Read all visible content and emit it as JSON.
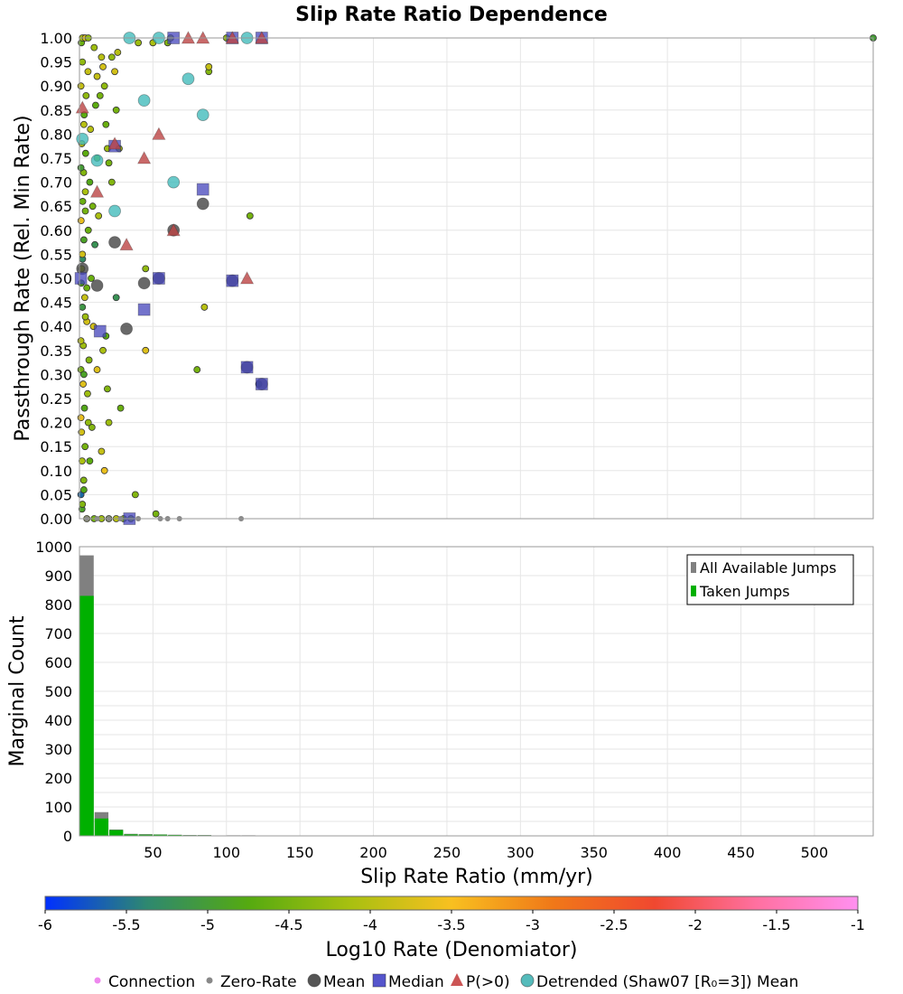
{
  "chart_data": [
    {
      "type": "scatter",
      "title": "Slip Rate Ratio Dependence",
      "xlabel": "",
      "ylabel": "Passthrough Rate (Rel. Min Rate)",
      "xlim": [
        0,
        540
      ],
      "ylim": [
        0,
        1
      ],
      "x_ticks": [],
      "y_ticks": [
        "0.00",
        "0.05",
        "0.10",
        "0.15",
        "0.20",
        "0.25",
        "0.30",
        "0.35",
        "0.40",
        "0.45",
        "0.50",
        "0.55",
        "0.60",
        "0.65",
        "0.70",
        "0.75",
        "0.80",
        "0.85",
        "0.90",
        "0.95",
        "1.00"
      ],
      "grid": true,
      "series": [
        {
          "name": "Connection",
          "marker": "circle-small",
          "color_scale": "log10_rate",
          "points": [
            [
              1.2,
              0.49,
              -4.8
            ],
            [
              1.5,
              0.52,
              -4.2
            ],
            [
              2,
              0.44,
              -5.1
            ],
            [
              1,
              0.31,
              -4.5
            ],
            [
              2.5,
              0.28,
              -3.7
            ],
            [
              1,
              0.05,
              -5.6
            ],
            [
              1.8,
              0.12,
              -4.1
            ],
            [
              2.2,
              0.66,
              -4.6
            ],
            [
              1,
              0.9,
              -3.9
            ],
            [
              2.8,
              0.72,
              -4.4
            ],
            [
              3,
              0.58,
              -4.9
            ],
            [
              1.4,
              0.18,
              -3.8
            ],
            [
              2,
              0.95,
              -4.3
            ],
            [
              3.2,
              0.84,
              -4.7
            ],
            [
              1.1,
              0.62,
              -3.6
            ],
            [
              2.6,
              0.36,
              -4.2
            ],
            [
              3.4,
              0.23,
              -4.8
            ],
            [
              1.6,
              0.78,
              -4.0
            ],
            [
              2.9,
              0.08,
              -4.4
            ],
            [
              1.3,
              0.99,
              -4.6
            ],
            [
              3.6,
              0.46,
              -3.9
            ],
            [
              2.1,
              0.54,
              -5.3
            ],
            [
              4,
              0.68,
              -4.1
            ],
            [
              3.8,
              0.15,
              -4.5
            ],
            [
              1.7,
              0.02,
              -4.9
            ],
            [
              4.5,
              0.88,
              -4.3
            ],
            [
              5,
              0.41,
              -3.8
            ],
            [
              4.2,
              0.76,
              -4.7
            ],
            [
              5.5,
              0.26,
              -4.2
            ],
            [
              6,
              0.6,
              -4.6
            ],
            [
              5.8,
              0.93,
              -3.9
            ],
            [
              6.5,
              0.33,
              -4.4
            ],
            [
              7,
              0.7,
              -4.8
            ],
            [
              3,
              1.0,
              -4.5
            ],
            [
              2,
              1.0,
              -4.1
            ],
            [
              4,
              1.0,
              -3.7
            ],
            [
              6,
              1.0,
              -4.3
            ],
            [
              8,
              0.5,
              -4.6
            ],
            [
              7.5,
              0.81,
              -4.0
            ],
            [
              9,
              0.65,
              -4.5
            ],
            [
              10,
              0.98,
              -4.2
            ],
            [
              11,
              0.86,
              -4.7
            ],
            [
              12,
              0.92,
              -3.9
            ],
            [
              8.5,
              0.19,
              -4.4
            ],
            [
              9.5,
              0.4,
              -3.8
            ],
            [
              10.5,
              0.57,
              -5.2
            ],
            [
              12,
              0.75,
              -4.6
            ],
            [
              13,
              0.63,
              -4.1
            ],
            [
              14,
              0.88,
              -4.5
            ],
            [
              15,
              0.96,
              -4.0
            ],
            [
              16,
              0.94,
              -3.8
            ],
            [
              17,
              0.9,
              -4.3
            ],
            [
              18,
              0.82,
              -4.6
            ],
            [
              19,
              0.77,
              -4.2
            ],
            [
              20,
              0.74,
              -4.5
            ],
            [
              15,
              0.14,
              -3.9
            ],
            [
              17,
              0.1,
              -3.6
            ],
            [
              19,
              0.27,
              -4.4
            ],
            [
              12,
              0.31,
              -3.7
            ],
            [
              16,
              0.35,
              -4.1
            ],
            [
              22,
              0.96,
              -4.3
            ],
            [
              24,
              0.93,
              -3.8
            ],
            [
              25,
              0.85,
              -4.5
            ],
            [
              26,
              0.97,
              -4.0
            ],
            [
              27,
              0.77,
              -4.2
            ],
            [
              22,
              0.7,
              -4.4
            ],
            [
              28,
              0.23,
              -4.6
            ],
            [
              25,
              0.46,
              -5.2
            ],
            [
              20,
              0.2,
              -4.2
            ],
            [
              18,
              0.38,
              -4.7
            ],
            [
              38,
              0.05,
              -4.4
            ],
            [
              40,
              0.99,
              -4.2
            ],
            [
              45,
              0.35,
              -3.7
            ],
            [
              45,
              0.52,
              -4.3
            ],
            [
              50,
              0.99,
              -4.1
            ],
            [
              52,
              0.01,
              -4.5
            ],
            [
              60,
              0.99,
              -4.4
            ],
            [
              62,
              1.0,
              -4.2
            ],
            [
              80,
              0.31,
              -4.5
            ],
            [
              85,
              0.44,
              -4.0
            ],
            [
              88,
              0.93,
              -4.4
            ],
            [
              88,
              0.94,
              -3.9
            ],
            [
              100,
              1.0,
              -4.3
            ],
            [
              116,
              0.63,
              -4.5
            ],
            [
              122,
              0.28,
              -5.4
            ],
            [
              5,
              0.0,
              -4.1
            ],
            [
              10,
              0.0,
              -4.5
            ],
            [
              15,
              0.0,
              -4.2
            ],
            [
              20,
              0.0,
              -4.6
            ],
            [
              25,
              0.0,
              -4.0
            ],
            [
              30,
              0.0,
              -4.4
            ],
            [
              35,
              0.0,
              -4.3
            ],
            [
              3,
              0.3,
              -4.9
            ],
            [
              4,
              0.42,
              -4.2
            ],
            [
              2,
              0.55,
              -3.8
            ],
            [
              5,
              0.48,
              -4.6
            ],
            [
              6,
              0.2,
              -4.3
            ],
            [
              7,
              0.12,
              -4.7
            ],
            [
              3,
              0.82,
              -4.0
            ],
            [
              4,
              0.64,
              -4.5
            ],
            [
              1,
              0.73,
              -5.0
            ],
            [
              1,
              0.37,
              -4.0
            ],
            [
              1,
              0.21,
              -3.6
            ],
            [
              2,
              0.03,
              -4.4
            ],
            [
              3,
              0.06,
              -4.8
            ],
            [
              540,
              1.0,
              -5.0
            ]
          ]
        },
        {
          "name": "Zero-Rate",
          "marker": "circle-small-gray",
          "points": [
            [
              5,
              0
            ],
            [
              12,
              0
            ],
            [
              20,
              0
            ],
            [
              28,
              0
            ],
            [
              40,
              0
            ],
            [
              55,
              0
            ],
            [
              60,
              0
            ],
            [
              68,
              0
            ],
            [
              110,
              0
            ]
          ]
        },
        {
          "name": "Mean",
          "marker": "circle",
          "color": "#444444",
          "points": [
            [
              2,
              0.52
            ],
            [
              12,
              0.485
            ],
            [
              24,
              0.575
            ],
            [
              32,
              0.395
            ],
            [
              44,
              0.49
            ],
            [
              54,
              0.5
            ],
            [
              64,
              0.6
            ],
            [
              84,
              0.655
            ],
            [
              104,
              0.495
            ],
            [
              114,
              0.315
            ],
            [
              124,
              0.28
            ]
          ]
        },
        {
          "name": "Median",
          "marker": "square",
          "color": "#4444bb",
          "points": [
            [
              1,
              0.5
            ],
            [
              14,
              0.39
            ],
            [
              24,
              0.775
            ],
            [
              34,
              0.0
            ],
            [
              44,
              0.435
            ],
            [
              54,
              0.5
            ],
            [
              64,
              1.0
            ],
            [
              84,
              0.685
            ],
            [
              104,
              0.495
            ],
            [
              114,
              0.315
            ],
            [
              124,
              0.28
            ],
            [
              104,
              1.0
            ],
            [
              124,
              1.0
            ]
          ]
        },
        {
          "name": "P(>0)",
          "marker": "triangle",
          "color": "#bb4444",
          "points": [
            [
              2,
              0.855
            ],
            [
              12,
              0.68
            ],
            [
              24,
              0.78
            ],
            [
              32,
              0.57
            ],
            [
              44,
              0.75
            ],
            [
              54,
              0.8
            ],
            [
              64,
              0.6
            ],
            [
              74,
              1.0
            ],
            [
              84,
              1.0
            ],
            [
              104,
              1.0
            ],
            [
              114,
              0.5
            ],
            [
              124,
              1.0
            ]
          ]
        },
        {
          "name": "Detrended (Shaw07 [R₀=3]) Mean",
          "marker": "circle",
          "color": "#44bbbb",
          "points": [
            [
              2,
              0.79
            ],
            [
              12,
              0.745
            ],
            [
              24,
              0.64
            ],
            [
              34,
              1.0
            ],
            [
              44,
              0.87
            ],
            [
              54,
              1.0
            ],
            [
              64,
              0.7
            ],
            [
              74,
              0.915
            ],
            [
              84,
              0.84
            ],
            [
              114,
              1.0
            ]
          ]
        }
      ]
    },
    {
      "type": "bar",
      "title": "",
      "xlabel": "Slip Rate Ratio (mm/yr)",
      "ylabel": "Marginal Count",
      "xlim": [
        0,
        540
      ],
      "ylim": [
        0,
        1000
      ],
      "x_ticks": [
        "50",
        "100",
        "150",
        "200",
        "250",
        "300",
        "350",
        "400",
        "450",
        "500"
      ],
      "y_ticks": [
        "0",
        "100",
        "200",
        "300",
        "400",
        "500",
        "600",
        "700",
        "800",
        "900",
        "1000"
      ],
      "grid": true,
      "bin_width": 10,
      "bin_starts": [
        0,
        10,
        20,
        30,
        40,
        50,
        60,
        70,
        80,
        90,
        100,
        110,
        120
      ],
      "legend": {
        "placement": "top-right"
      },
      "series": [
        {
          "name": "All Available Jumps",
          "color": "#808080",
          "values": [
            970,
            82,
            22,
            7,
            6,
            5,
            4,
            3,
            3,
            1,
            2,
            2,
            1
          ]
        },
        {
          "name": "Taken Jumps",
          "color": "#00b000",
          "values": [
            830,
            60,
            20,
            5,
            4,
            4,
            3,
            2,
            2,
            1,
            1,
            1,
            1
          ]
        }
      ]
    }
  ],
  "colorbar": {
    "label": "Log10 Rate (Denomiator)",
    "min": -6,
    "max": -1,
    "ticks": [
      "-6",
      "-5.5",
      "-5",
      "-4.5",
      "-4",
      "-3.5",
      "-3",
      "-2.5",
      "-2",
      "-1.5",
      "-1"
    ],
    "stops": [
      "#0030ff",
      "#2e8870",
      "#55aa10",
      "#a8c010",
      "#f8c020",
      "#f07818",
      "#f04830",
      "#ff70a0",
      "#ff90f0"
    ]
  },
  "legend": {
    "items": [
      {
        "label": "Connection",
        "marker": "dot",
        "color": "#ee88ee"
      },
      {
        "label": "Zero-Rate",
        "marker": "dot",
        "color": "#888888"
      },
      {
        "label": "Mean",
        "marker": "circle",
        "color": "#555555"
      },
      {
        "label": "Median",
        "marker": "square",
        "color": "#5555cc"
      },
      {
        "label": "P(>0)",
        "marker": "triangle",
        "color": "#cc5555"
      },
      {
        "label": "Detrended (Shaw07 [R₀=3]) Mean",
        "marker": "circle",
        "color": "#55bbbb"
      }
    ]
  }
}
